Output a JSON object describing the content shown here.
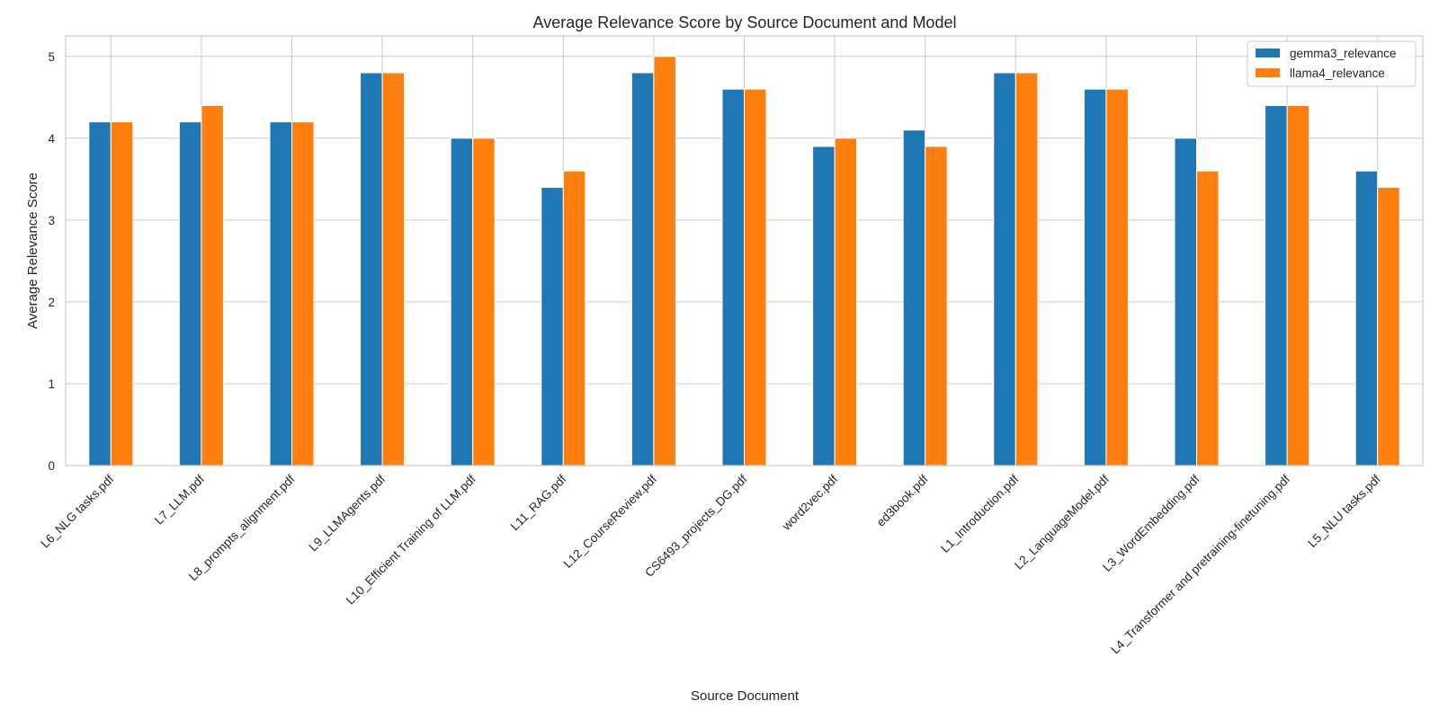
{
  "chart_data": {
    "type": "bar",
    "title": "Average Relevance Score by Source Document and Model",
    "xlabel": "Source Document",
    "ylabel": "Average Relevance Score",
    "ylim": [
      0,
      5.25
    ],
    "yticks": [
      0,
      1,
      2,
      3,
      4,
      5
    ],
    "grid": true,
    "legend_position": "top-right",
    "categories": [
      "L6_NLG tasks.pdf",
      "L7_LLM.pdf",
      "L8_prompts_alignment.pdf",
      "L9_LLMAgents.pdf",
      "L10_Efficient Training of LLM.pdf",
      "L11_RAG.pdf",
      "L12_CourseReview.pdf",
      "CS6493_projects_DG.pdf",
      "word2vec.pdf",
      "ed3book.pdf",
      "L1_Introduction.pdf",
      "L2_LanguageModel.pdf",
      "L3_WordEmbedding.pdf",
      "L4_Transformer and pretraining-finetuning.pdf",
      "L5_NLU tasks.pdf"
    ],
    "series": [
      {
        "name": "gemma3_relevance",
        "color": "#1f77b4",
        "values": [
          4.2,
          4.2,
          4.2,
          4.8,
          4.0,
          3.4,
          4.8,
          4.6,
          3.9,
          4.1,
          4.8,
          4.6,
          4.0,
          4.4,
          3.6
        ]
      },
      {
        "name": "llama4_relevance",
        "color": "#ff7f0e",
        "values": [
          4.2,
          4.4,
          4.2,
          4.8,
          4.0,
          3.6,
          5.0,
          4.6,
          4.0,
          3.9,
          4.8,
          4.6,
          3.6,
          4.4,
          3.4
        ]
      }
    ]
  }
}
